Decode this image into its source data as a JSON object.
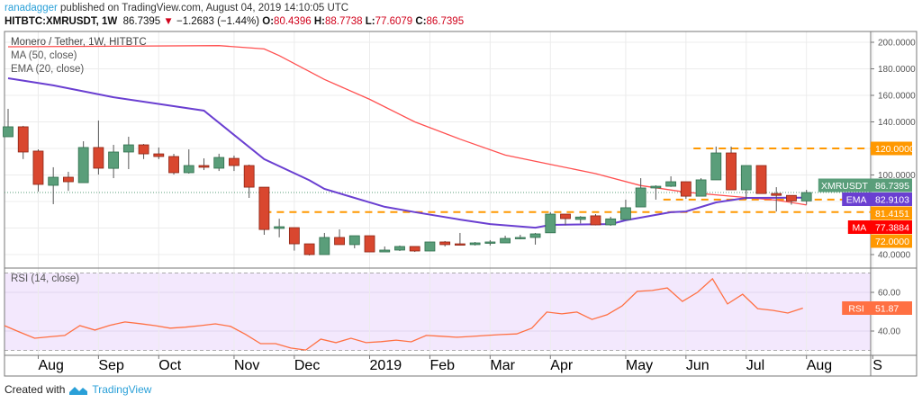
{
  "header": {
    "author": "ranadagger",
    "published": "published on TradingView.com, August 04, 2019 14:10:05 UTC",
    "symbol": "HITBTC:XMRUSDT, 1W",
    "last": "86.7395",
    "change": "−1.2683 (−1.44%)",
    "o_label": "O:",
    "o": "80.4396",
    "h_label": "H:",
    "h": "88.7738",
    "l_label": "L:",
    "l": "77.6079",
    "c_label": "C:",
    "c": "86.7395"
  },
  "legend": {
    "title": "Monero / Tether, 1W, HITBTC",
    "ma": "MA (50, close)",
    "ema": "EMA (20, close)",
    "rsi": "RSI (14, close)"
  },
  "footer": {
    "created": "Created with",
    "brand": "TradingView"
  },
  "colors": {
    "up": "#5a9e7a",
    "down": "#d9472f",
    "ma": "#ff5050",
    "ema": "#6a3fd1",
    "level": "#ff9800",
    "rsi": "#ff7043",
    "rsi_bg": "#f3e8fd"
  },
  "chart_data": {
    "type": "candlestick",
    "price_axis": {
      "min": 40,
      "max": 200,
      "ticks": [
        "200.0000",
        "180.0000",
        "160.0000",
        "140.0000",
        "100.0000",
        "40.0000"
      ],
      "tick_values": [
        200,
        180,
        160,
        140,
        100,
        40
      ]
    },
    "time_ticks": [
      "Aug",
      "Sep",
      "Oct",
      "Nov",
      "Dec",
      "2019",
      "Feb",
      "Mar",
      "Apr",
      "May",
      "Jun",
      "Jul",
      "Aug",
      "S"
    ],
    "time_tick_week_index": [
      2,
      6,
      10,
      15,
      19,
      24,
      28,
      32,
      36,
      41,
      45,
      49,
      53,
      57.4
    ],
    "candles_ohlc": [
      [
        128.8,
        149.8,
        128.8,
        136.3
      ],
      [
        136.3,
        137,
        112,
        117.3
      ],
      [
        118,
        119.3,
        87.5,
        92.9
      ],
      [
        92.2,
        105.8,
        78,
        98.3
      ],
      [
        98.3,
        102.4,
        88,
        94.9
      ],
      [
        94.2,
        125.4,
        94.2,
        120.7
      ],
      [
        120.7,
        141,
        100.3,
        105.1
      ],
      [
        105,
        122.7,
        97.6,
        117.3
      ],
      [
        117.3,
        128.8,
        104.4,
        122.7
      ],
      [
        122.7,
        123.4,
        112,
        115.9
      ],
      [
        115.9,
        120.7,
        111.9,
        113.9
      ],
      [
        113.9,
        115.9,
        100.3,
        101.7
      ],
      [
        101.7,
        119.3,
        101,
        107.1
      ],
      [
        107.1,
        112.5,
        103.7,
        105.8
      ],
      [
        105.1,
        116,
        103,
        113.2
      ],
      [
        112.5,
        114.6,
        103,
        107.1
      ],
      [
        107.1,
        107.8,
        82.7,
        90.8
      ],
      [
        90.8,
        90.8,
        54.9,
        58.9
      ],
      [
        59.7,
        67,
        53,
        61
      ],
      [
        60.3,
        60.3,
        43,
        48.1
      ],
      [
        48.1,
        48.1,
        39.3,
        40
      ],
      [
        40,
        56.3,
        40,
        52.9
      ],
      [
        52.9,
        59,
        47.5,
        47.5
      ],
      [
        47.5,
        54.2,
        44.7,
        54.2
      ],
      [
        54.2,
        54.2,
        42,
        42
      ],
      [
        42,
        46.1,
        42,
        43.4
      ],
      [
        43.4,
        46.8,
        42.7,
        46.1
      ],
      [
        46.1,
        46.1,
        42,
        42.7
      ],
      [
        42.7,
        49.5,
        42.7,
        49.5
      ],
      [
        49.5,
        50.2,
        46.1,
        47.5
      ],
      [
        48.1,
        56.3,
        46.8,
        47.5
      ],
      [
        47.5,
        49.5,
        46.8,
        48.8
      ],
      [
        48.8,
        50.9,
        46.8,
        49.5
      ],
      [
        48.8,
        54.2,
        48.8,
        52.2
      ],
      [
        52.2,
        54.9,
        51.5,
        52.9
      ],
      [
        52.9,
        56.3,
        47.5,
        55.6
      ],
      [
        56.4,
        72,
        56.4,
        70.5
      ],
      [
        70.5,
        70.5,
        62,
        67.1
      ],
      [
        66.5,
        69,
        63.5,
        68.3
      ],
      [
        69.2,
        70.5,
        62,
        62.4
      ],
      [
        62.4,
        68.5,
        61.7,
        66.9
      ],
      [
        66.4,
        81.4,
        66.4,
        75.3
      ],
      [
        75.9,
        97.6,
        75.9,
        90.2
      ],
      [
        90.2,
        92.2,
        81.4,
        91.5
      ],
      [
        91.5,
        99,
        91,
        94.9
      ],
      [
        94.9,
        94.9,
        82,
        84
      ],
      [
        84,
        97.6,
        84,
        96.3
      ],
      [
        96.3,
        121.4,
        96.3,
        116.6
      ],
      [
        116.6,
        121.4,
        88.8,
        88.8
      ],
      [
        88.8,
        107.1,
        81.4,
        107.1
      ],
      [
        107.1,
        107.1,
        86,
        86
      ],
      [
        86,
        90.8,
        72.5,
        84.6
      ],
      [
        84.6,
        84.6,
        77.6,
        80.4
      ],
      [
        80.44,
        88.77,
        77.61,
        86.74
      ]
    ],
    "ma50": [
      [
        0,
        196.6
      ],
      [
        14,
        197.5
      ],
      [
        17,
        195
      ],
      [
        18,
        190
      ],
      [
        21,
        172
      ],
      [
        24,
        157
      ],
      [
        27,
        140
      ],
      [
        30,
        127
      ],
      [
        33,
        115
      ],
      [
        36,
        108
      ],
      [
        39,
        101
      ],
      [
        42,
        92
      ],
      [
        45,
        87
      ],
      [
        48,
        84
      ],
      [
        51,
        81
      ],
      [
        53,
        77.4
      ]
    ],
    "ema20": [
      [
        0,
        172.9
      ],
      [
        3,
        167.5
      ],
      [
        7,
        158.6
      ],
      [
        13,
        148.5
      ],
      [
        19,
        141.7
      ],
      [
        29,
        134
      ],
      [
        33,
        129.5
      ],
      [
        40,
        125.4
      ],
      [
        45,
        122.7
      ],
      [
        48,
        120
      ],
      [
        53,
        111.9
      ]
    ],
    "ema20_cont": [
      [
        17,
        111.9
      ],
      [
        20,
        96
      ],
      [
        21,
        89.5
      ],
      [
        25,
        76
      ],
      [
        27,
        72
      ],
      [
        30,
        66.4
      ],
      [
        32,
        63
      ],
      [
        35,
        60.3
      ],
      [
        36,
        62.4
      ],
      [
        40,
        63
      ],
      [
        41,
        65.8
      ],
      [
        44,
        71.9
      ],
      [
        45,
        72.5
      ],
      [
        47,
        79.3
      ],
      [
        49,
        82.7
      ],
      [
        53,
        82.91
      ]
    ],
    "levels": [
      {
        "value": 120,
        "label": "120.0000",
        "from_week": 45.5
      },
      {
        "value": 81.4151,
        "label": "81.4151",
        "from_week": 43.5
      },
      {
        "value": 72,
        "label": "72.0000",
        "from_week": 17
      }
    ],
    "badges": {
      "last": {
        "name": "XMRUSDT",
        "value": "86.7395"
      },
      "ema": {
        "name": "EMA",
        "value": "82.9103"
      },
      "ma": {
        "name": "MA",
        "value": "77.3884"
      }
    },
    "rsi": {
      "axis_ticks": [
        "60.00",
        "40.00"
      ],
      "tick_values": [
        60,
        40
      ],
      "bands": [
        70,
        30
      ],
      "badge": {
        "name": "RSI",
        "value": "51.87"
      },
      "values": [
        42.8,
        39.5,
        36.3,
        37,
        37.7,
        42.8,
        40.5,
        43,
        44.7,
        43.8,
        42.8,
        41.5,
        42,
        42.8,
        43.7,
        42.4,
        38.3,
        33.5,
        33.5,
        31.2,
        30.2,
        35.8,
        34,
        36.3,
        34,
        34.5,
        35.3,
        34.4,
        37.7,
        37.3,
        36.8,
        37.2,
        37.7,
        38.2,
        38.5,
        41.5,
        49.8,
        48.9,
        49.8,
        46,
        48.4,
        53,
        60.5,
        61,
        62.3,
        55.3,
        60,
        67,
        54,
        59,
        51.6,
        50.7,
        49.3,
        51.87
      ]
    }
  }
}
